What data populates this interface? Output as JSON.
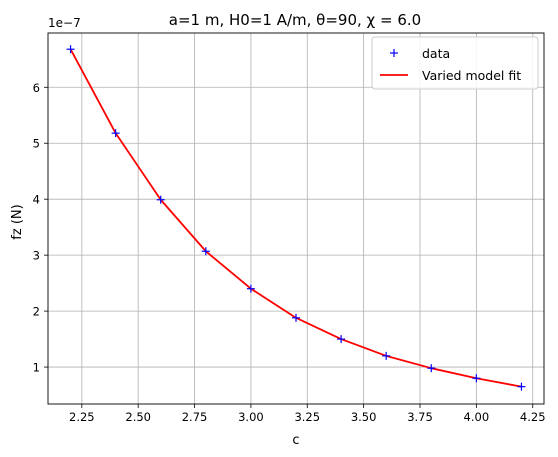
{
  "chart_data": {
    "type": "scatter",
    "title": "a=1 m, H0=1 A/m, θ=90, χ = 6.0",
    "xlabel": "c",
    "ylabel": "fz (N)",
    "y_offset_label": "1e−7",
    "y_scale": 1e-07,
    "xlim": [
      2.1,
      4.3
    ],
    "ylim": [
      0.34,
      6.97
    ],
    "x_ticks": [
      2.25,
      2.5,
      2.75,
      3.0,
      3.25,
      3.5,
      3.75,
      4.0,
      4.25
    ],
    "x_tick_labels": [
      "2.25",
      "2.50",
      "2.75",
      "3.00",
      "3.25",
      "3.50",
      "3.75",
      "4.00",
      "4.25"
    ],
    "y_ticks": [
      1,
      2,
      3,
      4,
      5,
      6
    ],
    "y_tick_labels": [
      "1",
      "2",
      "3",
      "4",
      "5",
      "6"
    ],
    "grid": true,
    "legend_position": "upper right",
    "x": [
      2.2,
      2.4,
      2.6,
      2.8,
      3.0,
      3.2,
      3.4,
      3.6,
      3.8,
      4.0,
      4.2
    ],
    "series": [
      {
        "name": "data",
        "kind": "markers",
        "marker": "+",
        "color": "#0000ff",
        "values": [
          6.68,
          5.18,
          3.99,
          3.07,
          2.4,
          1.88,
          1.5,
          1.2,
          0.98,
          0.8,
          0.65
        ]
      },
      {
        "name": "Varied model fit",
        "kind": "line",
        "color": "#ff0000",
        "values": [
          6.68,
          5.18,
          3.99,
          3.07,
          2.4,
          1.88,
          1.5,
          1.2,
          0.98,
          0.8,
          0.65
        ]
      }
    ]
  }
}
